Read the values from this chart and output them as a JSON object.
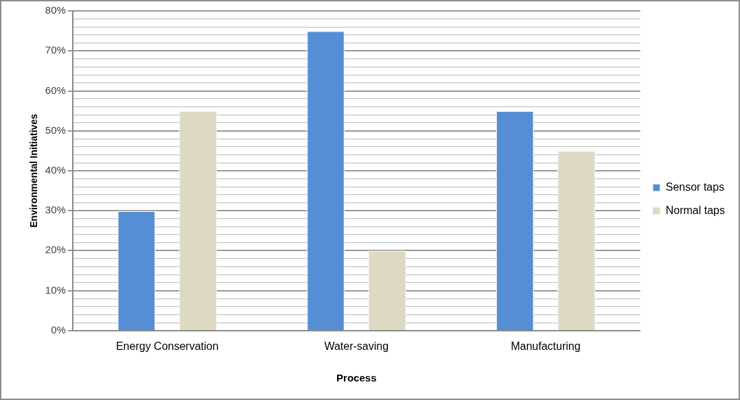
{
  "chart_data": {
    "type": "bar",
    "xlabel": "Process",
    "ylabel": "Environmental Initiatives",
    "categories": [
      "Energy Conservation",
      "Water-saving",
      "Manufacturing"
    ],
    "series": [
      {
        "name": "Sensor taps",
        "color": "#558ed5",
        "values": [
          30,
          75,
          55
        ]
      },
      {
        "name": "Normal taps",
        "color": "#ddd9c3",
        "values": [
          55,
          20,
          45
        ]
      }
    ],
    "ylim": [
      0,
      80
    ],
    "yticks": [
      {
        "value": 0,
        "label": "0%"
      },
      {
        "value": 2,
        "label": null
      },
      {
        "value": 4,
        "label": null
      },
      {
        "value": 6,
        "label": null
      },
      {
        "value": 8,
        "label": null
      },
      {
        "value": 10,
        "label": "10%"
      },
      {
        "value": 12,
        "label": null
      },
      {
        "value": 14,
        "label": null
      },
      {
        "value": 16,
        "label": null
      },
      {
        "value": 18,
        "label": null
      },
      {
        "value": 20,
        "label": "20%"
      },
      {
        "value": 22,
        "label": null
      },
      {
        "value": 24,
        "label": null
      },
      {
        "value": 26,
        "label": null
      },
      {
        "value": 28,
        "label": null
      },
      {
        "value": 30,
        "label": "30%"
      },
      {
        "value": 32,
        "label": null
      },
      {
        "value": 34,
        "label": null
      },
      {
        "value": 36,
        "label": null
      },
      {
        "value": 38,
        "label": null
      },
      {
        "value": 40,
        "label": "40%"
      },
      {
        "value": 42,
        "label": null
      },
      {
        "value": 44,
        "label": null
      },
      {
        "value": 46,
        "label": null
      },
      {
        "value": 48,
        "label": null
      },
      {
        "value": 50,
        "label": "50%"
      },
      {
        "value": 52,
        "label": null
      },
      {
        "value": 54,
        "label": null
      },
      {
        "value": 56,
        "label": null
      },
      {
        "value": 58,
        "label": null
      },
      {
        "value": 60,
        "label": "60%"
      },
      {
        "value": 62,
        "label": null
      },
      {
        "value": 64,
        "label": null
      },
      {
        "value": 66,
        "label": null
      },
      {
        "value": 68,
        "label": null
      },
      {
        "value": 70,
        "label": "70%"
      },
      {
        "value": 72,
        "label": null
      },
      {
        "value": 74,
        "label": null
      },
      {
        "value": 76,
        "label": null
      },
      {
        "value": 78,
        "label": null
      },
      {
        "value": 80,
        "label": "80%"
      }
    ],
    "grid": "y",
    "legend": "right"
  }
}
